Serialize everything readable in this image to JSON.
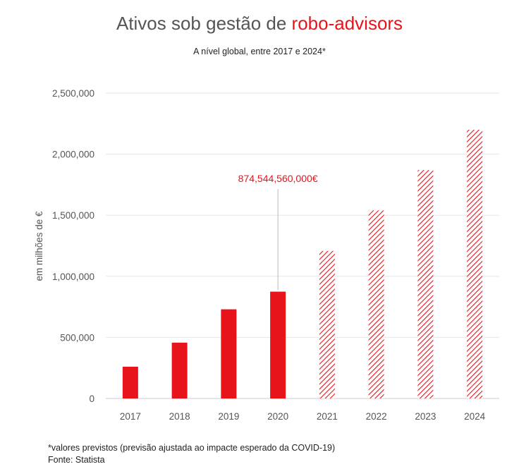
{
  "header": {
    "title_prefix": "Ativos sob gestão de ",
    "title_accent": "robo-advisors",
    "subtitle": "A nível global, entre 2017 e 2024*"
  },
  "footer": {
    "note": "*valores previstos (previsão ajustada ao impacte esperado da COVID-19)",
    "source": "Fonte: Statista"
  },
  "colors": {
    "accent": "#e8141c",
    "grid": "#e6e6e6",
    "axis": "#cccccc",
    "text": "#555555"
  },
  "chart_data": {
    "type": "bar",
    "categories": [
      "2017",
      "2018",
      "2019",
      "2020",
      "2021",
      "2022",
      "2023",
      "2024"
    ],
    "values": [
      260000,
      457000,
      730000,
      874544.56,
      1208000,
      1540000,
      1870000,
      2200000
    ],
    "forecast": [
      false,
      false,
      false,
      false,
      true,
      true,
      true,
      true
    ],
    "ylabel": "em milhões de €",
    "ylim": [
      0,
      2500000
    ],
    "yticks": [
      0,
      500000,
      1000000,
      1500000,
      2000000,
      2500000
    ],
    "ytick_labels": [
      "0",
      "500,000",
      "1,000,000",
      "1,500,000",
      "2,000,000",
      "2,500,000"
    ],
    "grid": true,
    "annotation": {
      "category": "2020",
      "text": "874,544,560,000€"
    }
  }
}
